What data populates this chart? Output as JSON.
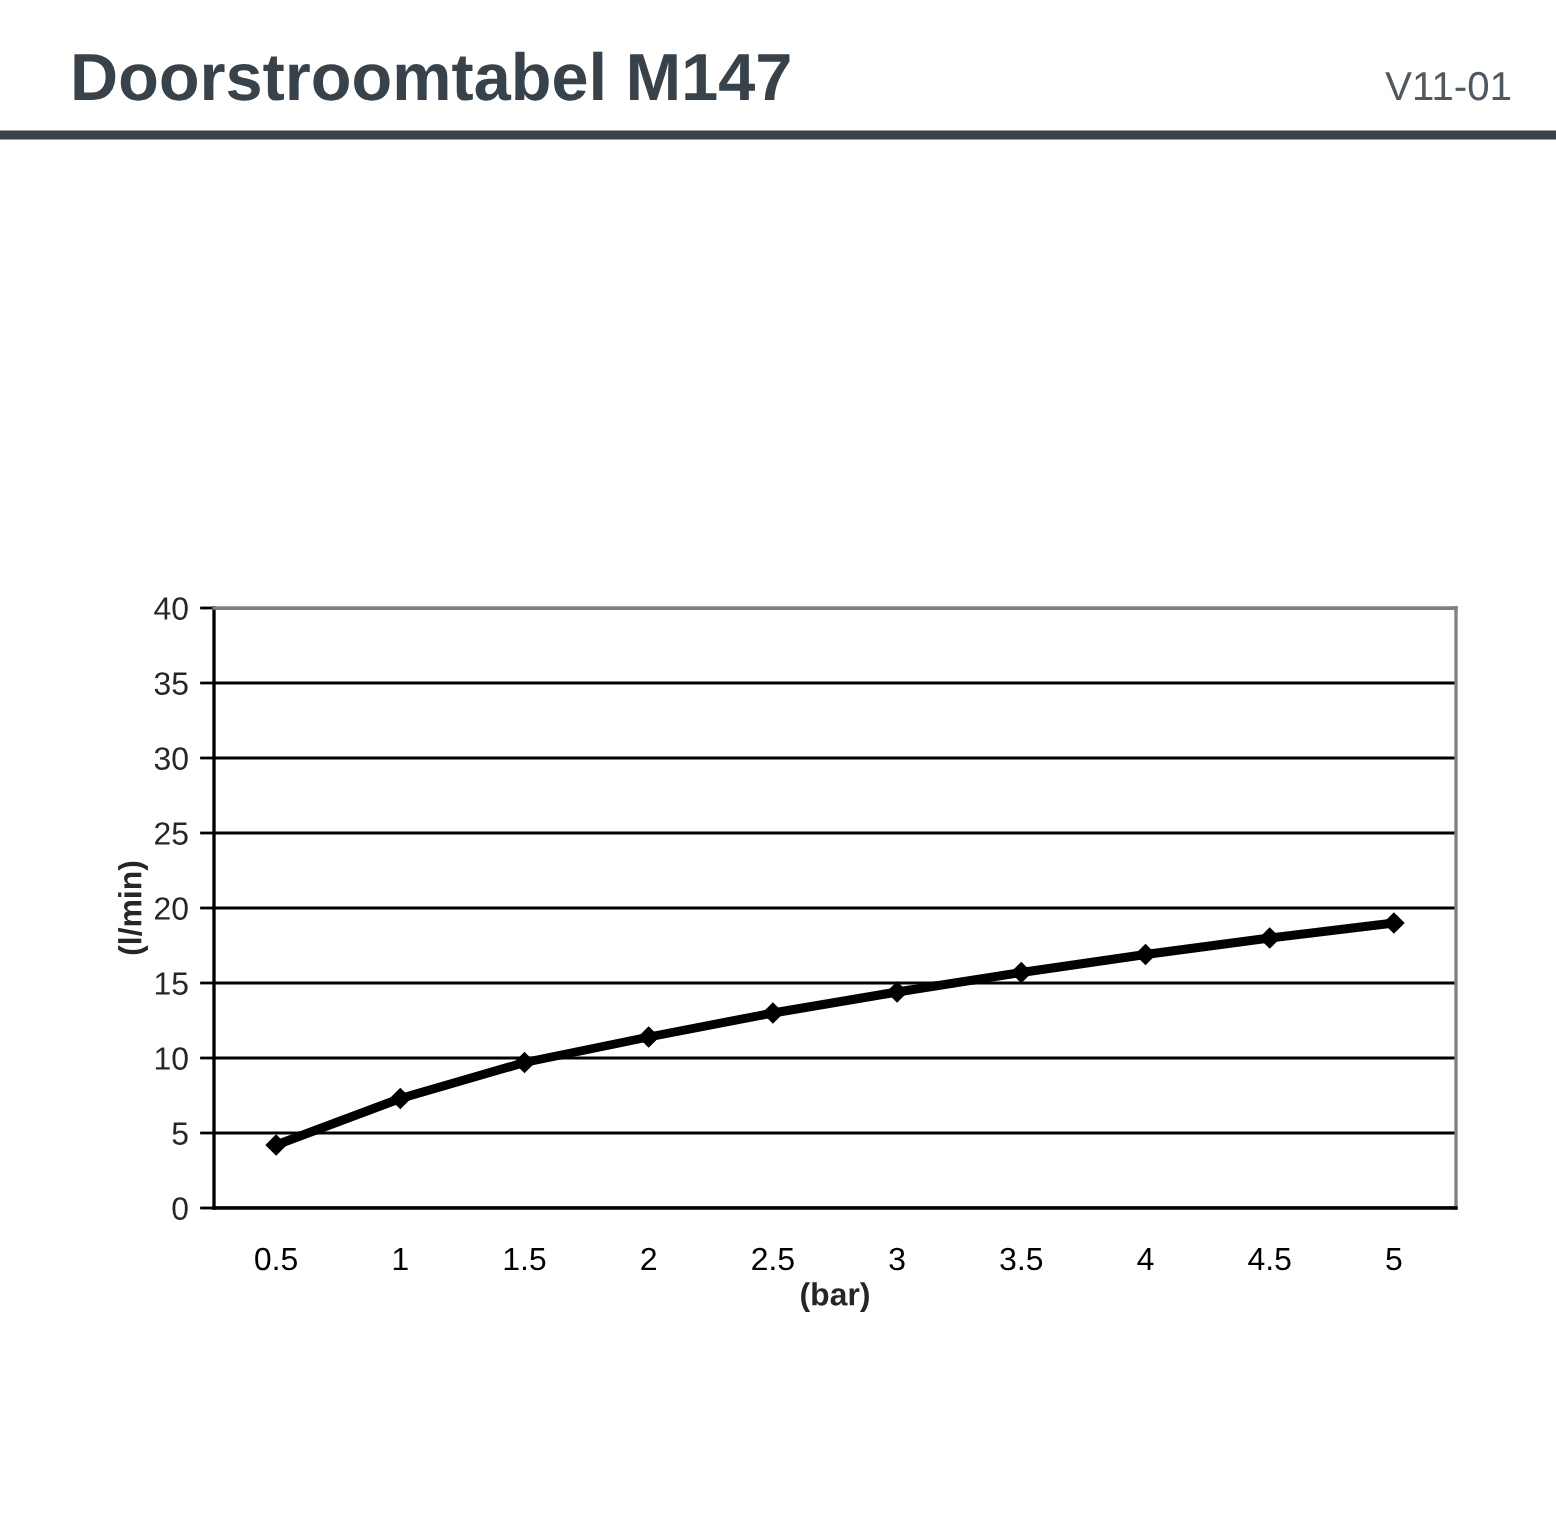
{
  "chart_data": {
    "type": "line",
    "title": "Doorstroomtabel M147",
    "annotations": [
      "V11-01"
    ],
    "xlabel": "(bar)",
    "ylabel": "(l/min)",
    "categories": [
      "0.5",
      "1",
      "1.5",
      "2",
      "2.5",
      "3",
      "3.5",
      "4",
      "4.5",
      "5"
    ],
    "series": [
      {
        "color": "#000000",
        "values": [
          4.2,
          7.3,
          9.7,
          11.4,
          13.0,
          14.4,
          15.7,
          16.9,
          18.0,
          19.0
        ]
      }
    ],
    "ylim": [
      0,
      40
    ],
    "yticks": [
      0,
      5,
      10,
      15,
      20,
      25,
      30,
      35,
      40
    ],
    "grid": "y",
    "marker": "diamond",
    "line_style": "solid"
  }
}
